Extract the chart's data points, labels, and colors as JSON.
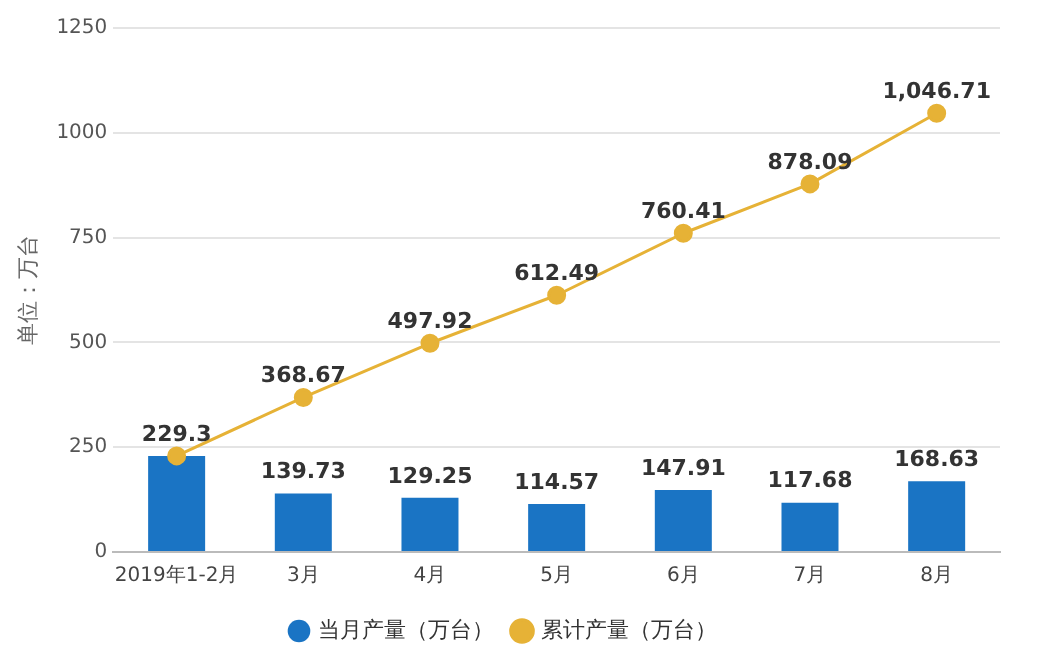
{
  "chart_data": {
    "type": "bar",
    "ylabel": "单位：万台",
    "categories": [
      "2019年1-2月",
      "3月",
      "4月",
      "5月",
      "6月",
      "7月",
      "8月"
    ],
    "series": [
      {
        "name": "当月产量（万台）",
        "color": "#1a74c4",
        "values": [
          229.3,
          139.73,
          129.25,
          114.57,
          147.91,
          117.68,
          168.63
        ],
        "value_labels": [
          null,
          "139.73",
          "129.25",
          "114.57",
          "147.91",
          "117.68",
          "168.63"
        ]
      },
      {
        "name": "累计产量（万台）",
        "type": "line",
        "color": "#e6b236",
        "marker": "circle",
        "values": [
          229.3,
          368.67,
          497.92,
          612.49,
          760.41,
          878.09,
          1046.71
        ],
        "value_labels": [
          "229.3",
          "368.67",
          "497.92",
          "612.49",
          "760.41",
          "878.09",
          "1,046.71"
        ]
      }
    ],
    "ylim": [
      0,
      1250
    ],
    "yticks": [
      0,
      250,
      500,
      750,
      1000,
      1250
    ],
    "grid": "y",
    "legend": "bottom"
  }
}
